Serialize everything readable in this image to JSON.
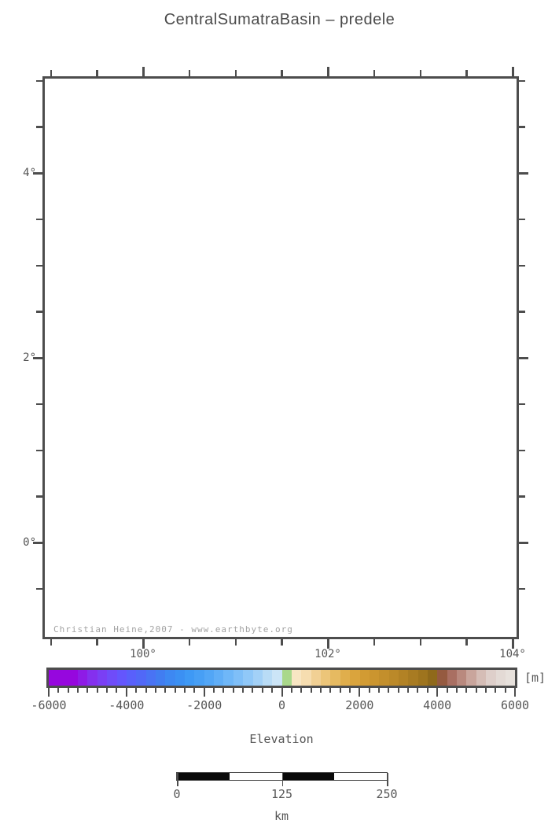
{
  "title": "CentralSumatraBasin – predele",
  "map": {
    "copyright": "Christian Heine,2007 - www.earthbyte.org",
    "x_axis": {
      "labels": [
        "100°",
        "102°",
        "104°"
      ]
    },
    "y_axis": {
      "labels": [
        "4°",
        "2°",
        "0°"
      ]
    }
  },
  "colorbar": {
    "unit": "[m]",
    "tick_labels": [
      "-6000",
      "-4000",
      "-2000",
      "0",
      "2000",
      "4000",
      "6000"
    ],
    "title": "Elevation",
    "segments": [
      "#9607DE",
      "#9607DE",
      "#9607DE",
      "#8E1BE6",
      "#8430EE",
      "#7A3FF4",
      "#6F4CF9",
      "#6456FD",
      "#5960FB",
      "#5168F7",
      "#4973F4",
      "#417DF1",
      "#3D88F2",
      "#3B90F3",
      "#3E99F5",
      "#479FF5",
      "#52A6F6",
      "#60AEF7",
      "#6FB7F8",
      "#7FBFF8",
      "#90C8F8",
      "#A3D1F7",
      "#B9DCF6",
      "#CCE5F7",
      "#A9D88B",
      "#F8E6C3",
      "#F6DDB0",
      "#F1D094",
      "#ECC579",
      "#E6BA61",
      "#E0AE4C",
      "#DAA43D",
      "#D29B33",
      "#CB952F",
      "#C38F2C",
      "#BB8929",
      "#B28225",
      "#A87B22",
      "#9E741E",
      "#8F691B",
      "#955A40",
      "#A96F62",
      "#B9897E",
      "#C9A59C",
      "#D5BDB6",
      "#DECFCA",
      "#E3DAD5",
      "#E7E1DC"
    ]
  },
  "scalebar": {
    "labels": [
      "0",
      "125",
      "250"
    ],
    "unit": "km",
    "segment_fills": [
      "#0a0a0a",
      "#ffffff",
      "#0a0a0a",
      "#ffffff"
    ]
  },
  "colors": {
    "frame": "#4d4d4d",
    "label-text": "#565656",
    "title-text": "#4a4a4a",
    "copyright": "#a3a3a3",
    "outline": "#ff2a12",
    "hydro": "#5c5c5c",
    "band0": "#FAE8CC",
    "band1": "#F4D9AE",
    "band2": "#EFCD92",
    "band3": "#E8BE74",
    "band4": "#E0AF52",
    "band5": "#D8A43E",
    "edark": "#CC9937",
    "olive": "#B5902E",
    "tipdark": "#AC8A27",
    "green": "#B5DB8F",
    "blue": "#D7E9F5"
  }
}
